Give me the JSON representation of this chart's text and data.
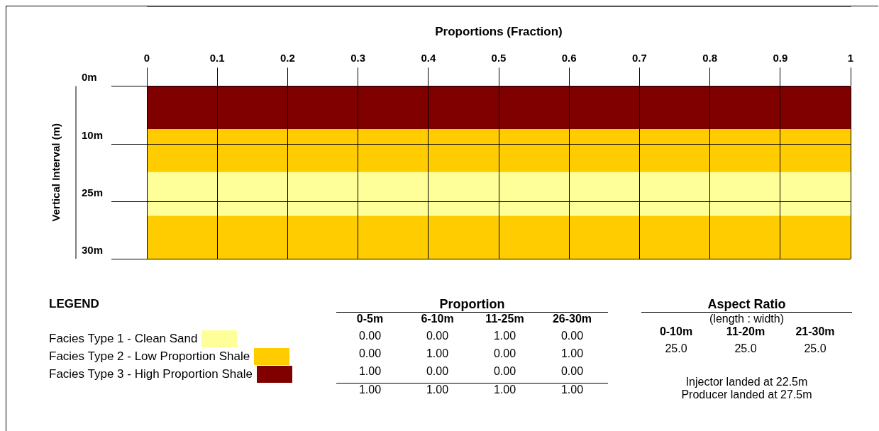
{
  "chart_data": [
    {
      "type": "bar",
      "orientation": "horizontal",
      "stacked": true,
      "title": "Proportions (Fraction)",
      "ylabel": "Vertical Interval (m)",
      "legend_title": "LEGEND",
      "legend": "bottom left",
      "categories": [
        null,
        null,
        null,
        null
      ],
      "series": [
        {
          "name": "Facies Type 1 - Clean Sand",
          "color": "#ffff99",
          "values": [
            0,
            0,
            1,
            0
          ]
        },
        {
          "name": "Facies Type 2 - Low Proportion Shale",
          "color": "#ffcc00",
          "values": [
            0,
            1,
            0,
            1
          ]
        },
        {
          "name": "Facies Type 3 - High Proportion Shale",
          "color": "#800000",
          "values": [
            1,
            0,
            0,
            0
          ]
        }
      ],
      "xlim": [
        0,
        1
      ],
      "xticks": [
        0,
        0.1,
        0.2,
        0.3,
        0.4,
        0.5,
        0.6,
        0.7,
        0.8,
        0.9,
        1
      ],
      "grid": "x",
      "annotations": [
        "0m",
        "10m",
        "25m",
        "30m"
      ]
    },
    {
      "type": "other",
      "title": "Proportion",
      "categories": [
        "0-5m",
        "6-10m",
        "11-25m",
        "26-30m"
      ],
      "series": [
        {
          "values": [
            0,
            0,
            1,
            0
          ],
          "value_labels": [
            "0.00",
            "0.00",
            "1.00",
            "0.00"
          ]
        },
        {
          "values": [
            0,
            1,
            0,
            1
          ],
          "value_labels": [
            "0.00",
            "1.00",
            "0.00",
            "1.00"
          ]
        },
        {
          "values": [
            1,
            0,
            0,
            0
          ],
          "value_labels": [
            "1.00",
            "0.00",
            "0.00",
            "0.00"
          ]
        }
      ],
      "totals": [
        "1.00",
        "1.00",
        "1.00",
        "1.00"
      ]
    },
    {
      "type": "other",
      "title": "Aspect Ratio",
      "subtitle": "(length : width)",
      "categories": [
        "0-10m",
        "11-20m",
        "21-30m"
      ],
      "values": [
        25,
        25,
        25
      ],
      "value_labels": [
        "25.0",
        "25.0",
        "25.0"
      ],
      "annotations": [
        "Injector landed at 22.5m",
        "Producer landed at 27.5m"
      ]
    }
  ]
}
